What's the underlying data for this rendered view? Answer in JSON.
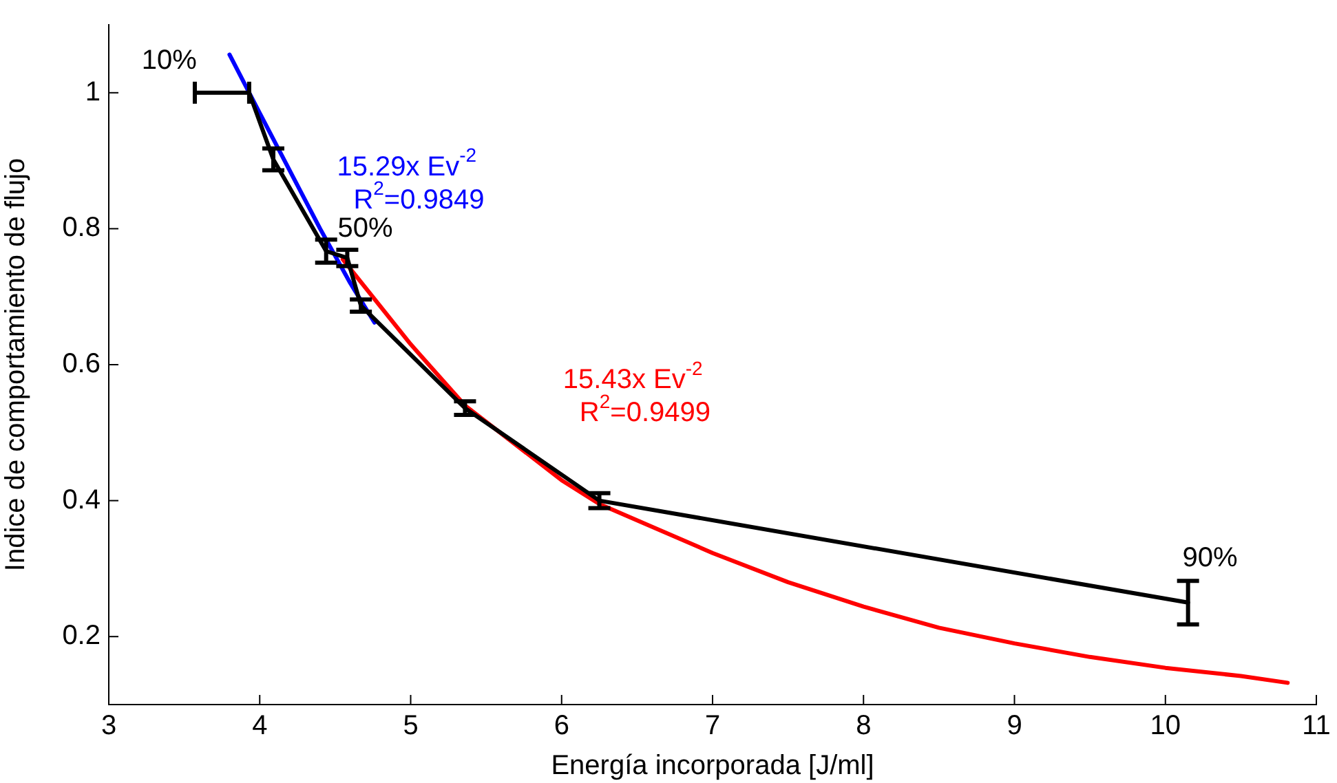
{
  "chart_data": {
    "type": "line",
    "xlabel": "Energía incorporada [J/ml]",
    "ylabel": "Indice de comportamiento de flujo",
    "xlim": [
      3,
      11
    ],
    "xticks": [
      3,
      4,
      5,
      6,
      7,
      8,
      9,
      10,
      11
    ],
    "ylim": [
      0.1,
      1.1
    ],
    "yticks": [
      0.2,
      0.4,
      0.6,
      0.8,
      1
    ],
    "grid": false,
    "legend": false,
    "line_style": "solid",
    "series": [
      {
        "color": "#000000",
        "x": [
          3.93,
          4.09,
          4.44,
          4.58,
          4.67,
          5.36,
          6.25,
          10.15
        ],
        "values": [
          1.0,
          0.902,
          0.767,
          0.757,
          0.687,
          0.536,
          0.4,
          0.25
        ],
        "errors": [
          null,
          0.016,
          0.017,
          0.012,
          0.009,
          0.01,
          0.011,
          0.032
        ],
        "xerrors": [
          [
            3.57,
            3.93
          ],
          null,
          null,
          null,
          null,
          null,
          null,
          null
        ]
      },
      {
        "type": "line",
        "name": "15.29x Ev$^{-2}$\nR$^{2}$=0.9849",
        "color": "#0000ff",
        "x": [
          3.8,
          4.0,
          4.2,
          4.4,
          4.6,
          4.76
        ],
        "values": [
          1.056,
          0.97,
          0.885,
          0.8,
          0.72,
          0.662
        ]
      },
      {
        "type": "line",
        "name": "15.43x Ev$^{-2}$\nR$^{2}$=0.9499",
        "color": "#ff0000",
        "x": [
          4.55,
          5.0,
          5.36,
          6.0,
          6.25,
          7.0,
          7.5,
          8.0,
          8.5,
          9.0,
          9.5,
          10.0,
          10.5,
          10.81
        ],
        "values": [
          0.755,
          0.63,
          0.54,
          0.43,
          0.395,
          0.323,
          0.28,
          0.244,
          0.213,
          0.19,
          0.17,
          0.154,
          0.142,
          0.132
        ]
      }
    ],
    "annotations": [
      {
        "text": "10%",
        "x": 3.93,
        "y": 1.0
      },
      {
        "text": "50%",
        "x": 4.58,
        "y": 0.757
      },
      {
        "text": "90%",
        "x": 10.15,
        "y": 0.25
      }
    ]
  }
}
